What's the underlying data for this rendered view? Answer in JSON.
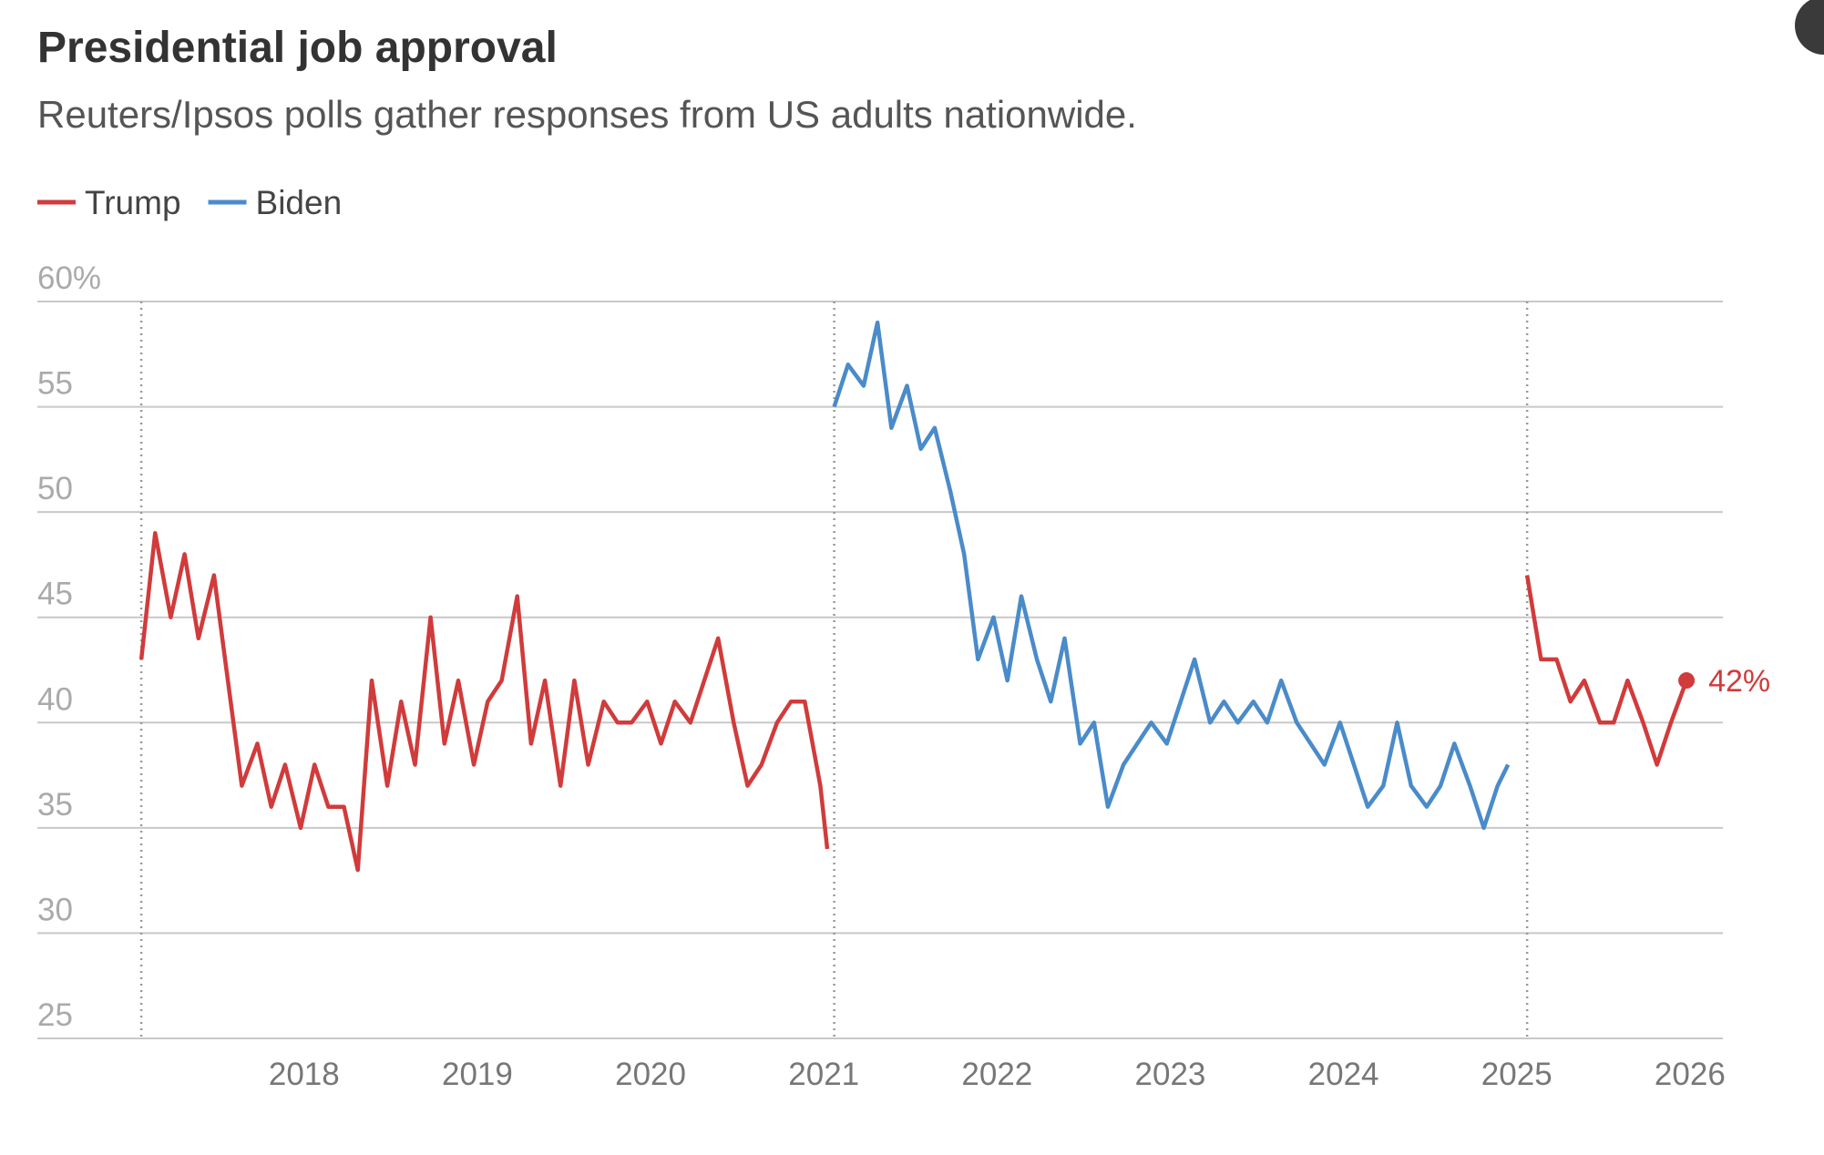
{
  "chart_data": {
    "type": "line",
    "title": "Presidential job approval",
    "subtitle": "Reuters/Ipsos polls gather responses from US adults nationwide.",
    "annotation": "42%",
    "series": [
      {
        "name": "Trump",
        "color": "#d13b3b",
        "x": [
          2017.06,
          2017.14,
          2017.23,
          2017.31,
          2017.39,
          2017.48,
          2017.56,
          2017.64,
          2017.73,
          2017.81,
          2017.89,
          2017.98,
          2018.06,
          2018.14,
          2018.23,
          2018.31,
          2018.39,
          2018.48,
          2018.56,
          2018.64,
          2018.73,
          2018.81,
          2018.89,
          2018.98,
          2019.06,
          2019.14,
          2019.23,
          2019.31,
          2019.39,
          2019.48,
          2019.56,
          2019.64,
          2019.73,
          2019.81,
          2019.89,
          2019.98,
          2020.06,
          2020.14,
          2020.23,
          2020.31,
          2020.39,
          2020.48,
          2020.56,
          2020.64,
          2020.73,
          2020.81,
          2020.89,
          2020.98,
          2021.02,
          2023.0,
          2025.06,
          2025.14,
          2025.23,
          2025.31,
          2025.39,
          2025.48,
          2025.56,
          2025.64,
          2025.73,
          2025.81,
          2025.89,
          2025.98
        ],
        "values": [
          43,
          49,
          45,
          48,
          44,
          47,
          42,
          37,
          39,
          36,
          38,
          35,
          38,
          36,
          36,
          33,
          42,
          37,
          41,
          38,
          45,
          39,
          42,
          38,
          41,
          42,
          46,
          39,
          42,
          37,
          42,
          38,
          41,
          40,
          40,
          41,
          39,
          41,
          40,
          42,
          44,
          40,
          37,
          38,
          40,
          41,
          41,
          37,
          34,
          null,
          47,
          43,
          43,
          41,
          42,
          40,
          40,
          42,
          40,
          38,
          40,
          42
        ]
      },
      {
        "name": "Biden",
        "color": "#4a8bc9",
        "x": [
          2021.06,
          2021.14,
          2021.23,
          2021.31,
          2021.39,
          2021.48,
          2021.56,
          2021.64,
          2021.73,
          2021.81,
          2021.89,
          2021.98,
          2022.06,
          2022.14,
          2022.23,
          2022.31,
          2022.39,
          2022.48,
          2022.56,
          2022.64,
          2022.73,
          2022.81,
          2022.89,
          2022.98,
          2023.06,
          2023.14,
          2023.23,
          2023.31,
          2023.39,
          2023.48,
          2023.56,
          2023.64,
          2023.73,
          2023.81,
          2023.89,
          2023.98,
          2024.06,
          2024.14,
          2024.23,
          2024.31,
          2024.39,
          2024.48,
          2024.56,
          2024.64,
          2024.73,
          2024.81,
          2024.89,
          2024.95
        ],
        "values": [
          55,
          57,
          56,
          59,
          54,
          56,
          53,
          54,
          51,
          48,
          43,
          45,
          42,
          46,
          43,
          41,
          44,
          39,
          40,
          36,
          38,
          39,
          40,
          39,
          41,
          43,
          40,
          41,
          40,
          41,
          40,
          42,
          40,
          39,
          38,
          40,
          38,
          36,
          37,
          40,
          37,
          36,
          37,
          39,
          37,
          35,
          37,
          38
        ]
      }
    ],
    "reference_lines": [
      2017.06,
      2021.06,
      2025.06
    ],
    "xlim": [
      2016.46,
      2026.19
    ],
    "xticks": [
      2018,
      2019,
      2020,
      2021,
      2022,
      2023,
      2024,
      2025,
      2026
    ],
    "ylim": [
      25,
      60
    ],
    "yticks": [
      {
        "value": 60,
        "label": "60%"
      },
      55,
      50,
      45,
      40,
      35,
      30,
      25
    ],
    "grid": true
  }
}
